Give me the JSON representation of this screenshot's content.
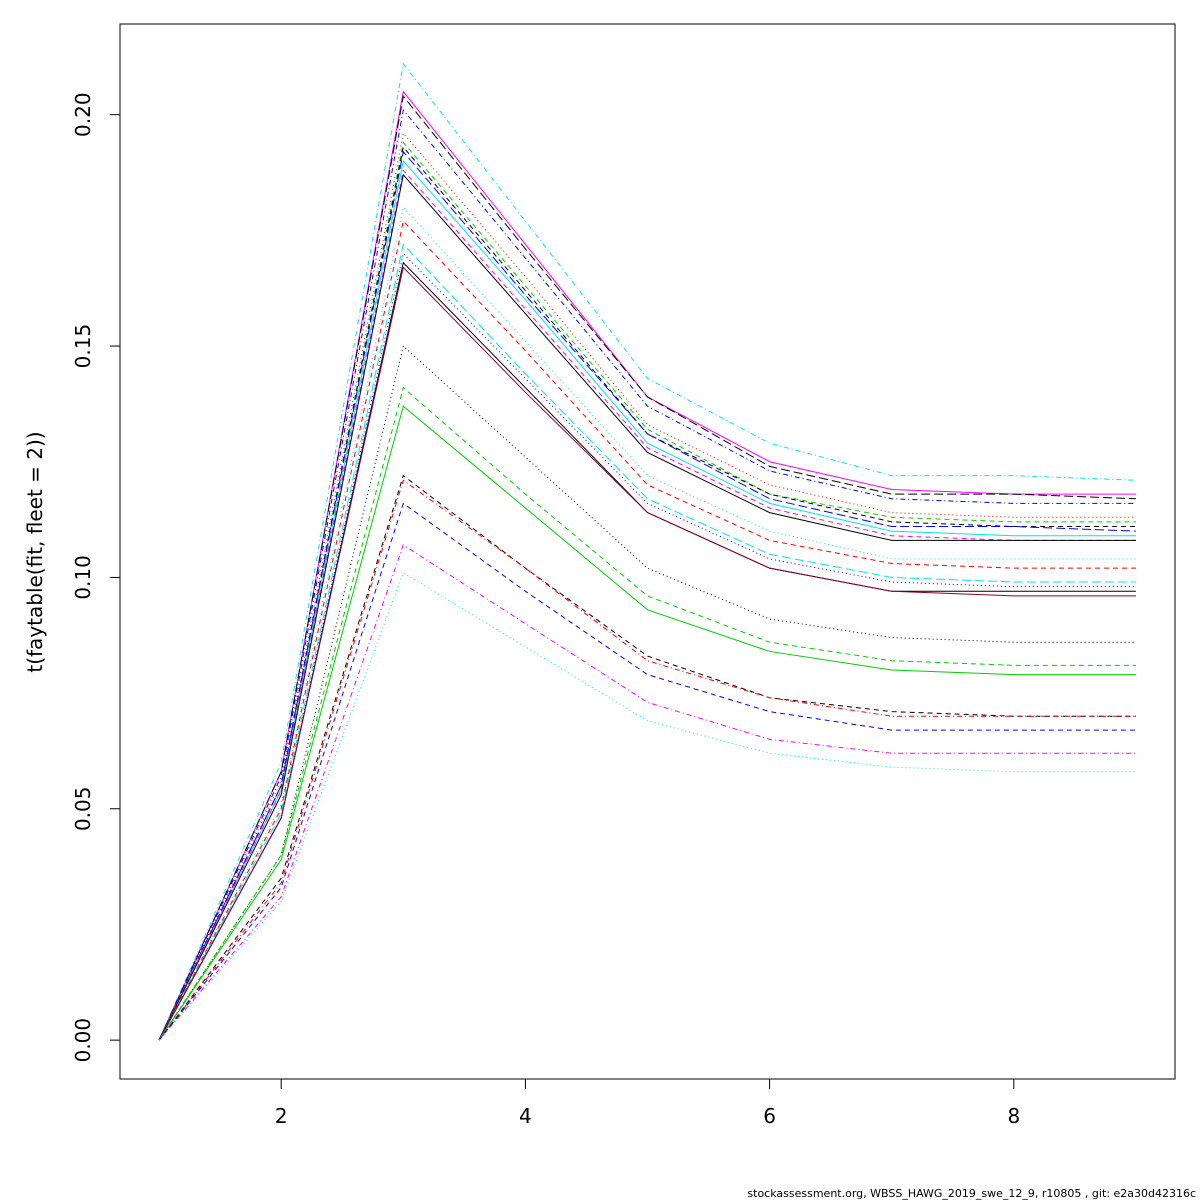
{
  "chart_data": {
    "type": "line",
    "y_label": "t(faytable(fit, fleet = 2))",
    "footer": "stockassessment.org, WBSS_HAWG_2019_swe_12_9, r10805 , git: e2a30d42316c",
    "x": [
      1,
      2,
      3,
      4,
      5,
      6,
      7,
      8,
      9
    ],
    "xlim": [
      0.68,
      9.32
    ],
    "xticks": [
      2,
      4,
      6,
      8
    ],
    "ylim": [
      -0.0084,
      0.2196
    ],
    "yticks": [
      {
        "value": 0,
        "label": "0.00"
      },
      0.05,
      {
        "value": 0.1,
        "label": "0.10"
      },
      0.15,
      {
        "value": 0.2,
        "label": "0.20"
      }
    ],
    "series": [
      {
        "color": "#00e5ee",
        "linestyle": "dotdash",
        "values": [
          0,
          0.06,
          0.211,
          0.177,
          0.143,
          0.129,
          0.122,
          0.122,
          0.121
        ]
      },
      {
        "color": "#ff00ff",
        "linestyle": "solid",
        "values": [
          0,
          0.058,
          0.205,
          0.172,
          0.139,
          0.125,
          0.119,
          0.118,
          0.118
        ]
      },
      {
        "color": "#000000",
        "linestyle": "longdash",
        "values": [
          0,
          0.058,
          0.204,
          0.171,
          0.139,
          0.124,
          0.118,
          0.118,
          0.117
        ]
      },
      {
        "color": "#0000ff",
        "linestyle": "dotdash",
        "values": [
          0,
          0.057,
          0.201,
          0.169,
          0.137,
          0.123,
          0.117,
          0.116,
          0.116
        ]
      },
      {
        "color": "#ff0000",
        "linestyle": "dotted",
        "values": [
          0,
          0.056,
          0.196,
          0.165,
          0.133,
          0.12,
          0.114,
          0.113,
          0.113
        ]
      },
      {
        "color": "#00cd00",
        "linestyle": "dashed",
        "values": [
          0,
          0.055,
          0.194,
          0.163,
          0.132,
          0.118,
          0.113,
          0.112,
          0.112
        ]
      },
      {
        "color": "#000000",
        "linestyle": "dashed",
        "values": [
          0,
          0.055,
          0.193,
          0.162,
          0.131,
          0.118,
          0.112,
          0.111,
          0.111
        ]
      },
      {
        "color": "#0000ff",
        "linestyle": "longdash",
        "values": [
          0,
          0.055,
          0.192,
          0.161,
          0.131,
          0.117,
          0.111,
          0.111,
          0.11
        ]
      },
      {
        "color": "#00e5ee",
        "linestyle": "solid",
        "values": [
          0,
          0.054,
          0.19,
          0.16,
          0.129,
          0.116,
          0.11,
          0.109,
          0.109
        ]
      },
      {
        "color": "#ff00ff",
        "linestyle": "dashed",
        "values": [
          0,
          0.054,
          0.188,
          0.158,
          0.128,
          0.115,
          0.109,
          0.108,
          0.108
        ]
      },
      {
        "color": "#000000",
        "linestyle": "solid",
        "values": [
          0,
          0.053,
          0.187,
          0.157,
          0.127,
          0.114,
          0.108,
          0.108,
          0.108
        ]
      },
      {
        "color": "#00e5ee",
        "linestyle": "dotted",
        "values": [
          0,
          0.051,
          0.18,
          0.151,
          0.122,
          0.11,
          0.104,
          0.104,
          0.104
        ]
      },
      {
        "color": "#ff0000",
        "linestyle": "dashed",
        "values": [
          0,
          0.05,
          0.177,
          0.149,
          0.12,
          0.108,
          0.103,
          0.102,
          0.102
        ]
      },
      {
        "color": "#00e5ee",
        "linestyle": "longdash",
        "values": [
          0,
          0.049,
          0.172,
          0.144,
          0.117,
          0.105,
          0.1,
          0.099,
          0.099
        ]
      },
      {
        "color": "#0000ff",
        "linestyle": "dotted",
        "values": [
          0,
          0.048,
          0.17,
          0.143,
          0.116,
          0.104,
          0.099,
          0.098,
          0.098
        ]
      },
      {
        "color": "#000000",
        "linestyle": "solid",
        "values": [
          0,
          0.048,
          0.168,
          0.141,
          0.114,
          0.102,
          0.097,
          0.097,
          0.097
        ]
      },
      {
        "color": "#8b0038",
        "linestyle": "solid",
        "values": [
          0,
          0.048,
          0.167,
          0.14,
          0.114,
          0.102,
          0.097,
          0.096,
          0.096
        ]
      },
      {
        "color": "#000000",
        "linestyle": "dotted",
        "values": [
          0,
          0.04,
          0.15,
          0.126,
          0.102,
          0.091,
          0.087,
          0.086,
          0.086
        ]
      },
      {
        "color": "#00cd00",
        "linestyle": "dashed",
        "values": [
          0,
          0.04,
          0.141,
          0.118,
          0.096,
          0.086,
          0.082,
          0.081,
          0.081
        ]
      },
      {
        "color": "#00cd00",
        "linestyle": "solid",
        "values": [
          0,
          0.039,
          0.137,
          0.115,
          0.093,
          0.084,
          0.08,
          0.079,
          0.079
        ]
      },
      {
        "color": "#000000",
        "linestyle": "dashed",
        "values": [
          0,
          0.035,
          0.122,
          0.102,
          0.083,
          0.074,
          0.071,
          0.07,
          0.07
        ]
      },
      {
        "color": "#ff0000",
        "linestyle": "dotdash",
        "values": [
          0,
          0.034,
          0.121,
          0.102,
          0.082,
          0.074,
          0.07,
          0.07,
          0.07
        ]
      },
      {
        "color": "#0000ff",
        "linestyle": "dashed",
        "values": [
          0,
          0.033,
          0.116,
          0.097,
          0.079,
          0.071,
          0.067,
          0.067,
          0.067
        ]
      },
      {
        "color": "#ff00ff",
        "linestyle": "dotdash",
        "values": [
          0,
          0.031,
          0.107,
          0.09,
          0.073,
          0.065,
          0.062,
          0.062,
          0.062
        ]
      },
      {
        "color": "#00e5ee",
        "linestyle": "dotted",
        "values": [
          0,
          0.03,
          0.101,
          0.085,
          0.069,
          0.062,
          0.059,
          0.058,
          0.058
        ]
      }
    ]
  }
}
